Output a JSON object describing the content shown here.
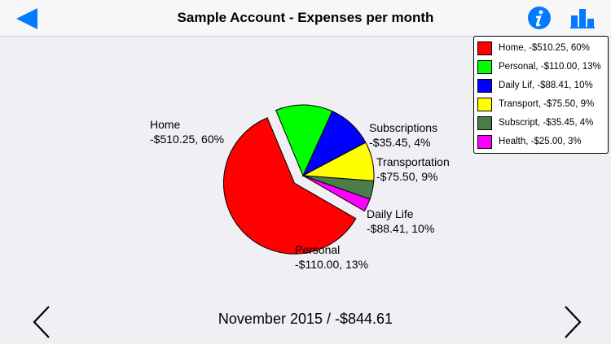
{
  "header": {
    "title": "Sample Account - Expenses per month",
    "back_icon": "back-triangle-icon",
    "info_icon": "info-icon",
    "chart_icon": "bar-chart-icon",
    "accent_color": "#007aff"
  },
  "chart_data": {
    "type": "pie",
    "slices": [
      {
        "label_line1": "Home",
        "label_line2": "-$510.25, 60%",
        "legend": "Home, -$510.25, 60%",
        "value": 510.25,
        "percent": 60,
        "color": "#ff0000",
        "exploded": true
      },
      {
        "label_line1": "Personal",
        "label_line2": "-$110.00, 13%",
        "legend": "Personal, -$110.00, 13%",
        "value": 110.0,
        "percent": 13,
        "color": "#00ff00",
        "exploded": false
      },
      {
        "label_line1": "Daily Life",
        "label_line2": "-$88.41, 10%",
        "legend": "Daily Lif, -$88.41, 10%",
        "value": 88.41,
        "percent": 10,
        "color": "#0000ff",
        "exploded": false
      },
      {
        "label_line1": "Transportation",
        "label_line2": "-$75.50, 9%",
        "legend": "Transport, -$75.50, 9%",
        "value": 75.5,
        "percent": 9,
        "color": "#ffff00",
        "exploded": false
      },
      {
        "label_line1": "Subscriptions",
        "label_line2": "-$35.45, 4%",
        "legend": "Subscript, -$35.45, 4%",
        "value": 35.45,
        "percent": 4,
        "color": "#4a7d4a",
        "exploded": false
      },
      {
        "label_line1": "",
        "label_line2": "",
        "legend": "Health, -$25.00, 3%",
        "value": 25.0,
        "percent": 3,
        "color": "#ff00ff",
        "exploded": false
      }
    ],
    "legend_placement": "top-right"
  },
  "footer": {
    "period_text": "November 2015 / -$844.61",
    "prev_icon": "chevron-left-icon",
    "next_icon": "chevron-right-icon"
  }
}
